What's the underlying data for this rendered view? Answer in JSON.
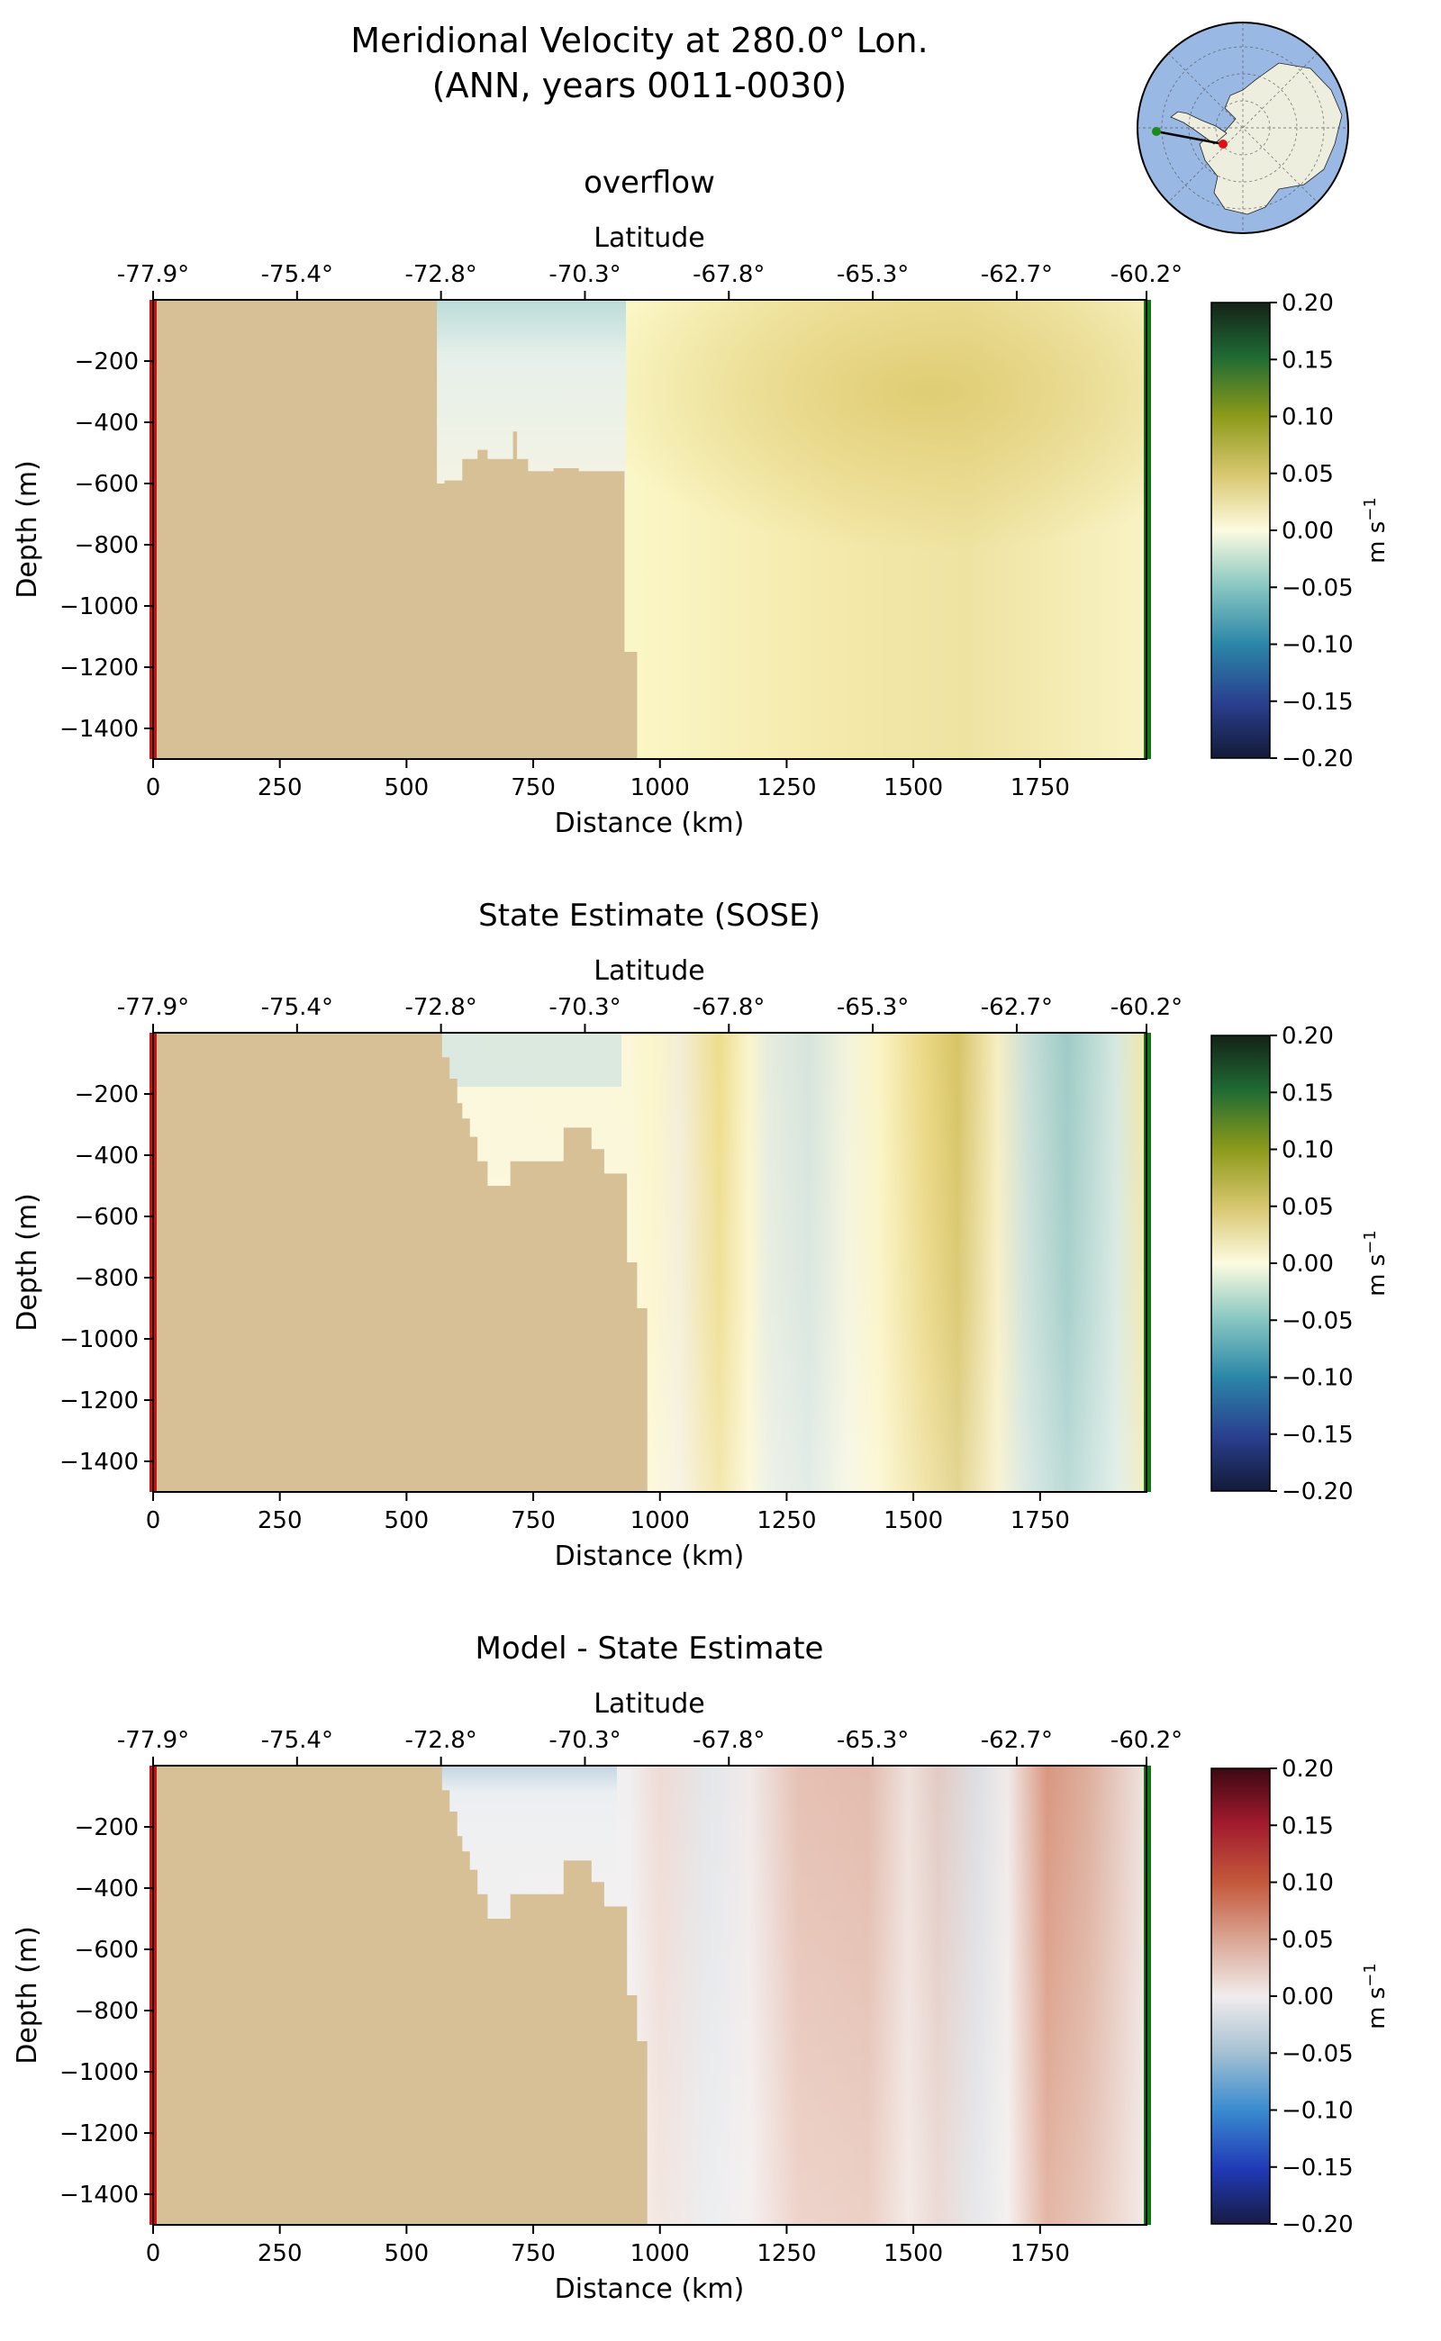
{
  "figure": {
    "title_line1": "Meridional Velocity at 280.0° Lon.",
    "title_line2": "(ANN, years 0011-0030)"
  },
  "inset_map": {
    "region": "Antarctica south polar stereographic view",
    "ocean_color": "#9ab8e4",
    "land_color": "#eeeedf",
    "transect_start_color": "#1a8a1a",
    "transect_end_color": "#e01010"
  },
  "colors": {
    "bathymetry": "#d7bf96",
    "transect_start_marker": "#cc1111",
    "transect_end_marker": "#117711"
  },
  "chart_data": [
    {
      "type": "heatmap",
      "title": "overflow",
      "xlabel": "Distance (km)",
      "ylabel": "Depth (m)",
      "top_axis_label": "Latitude",
      "xlim": [
        0,
        1960
      ],
      "ylim": [
        -1500,
        0
      ],
      "x_ticks": [
        0,
        250,
        500,
        750,
        1000,
        1250,
        1500,
        1750
      ],
      "y_ticks": [
        -200,
        -400,
        -600,
        -800,
        -1000,
        -1200,
        -1400
      ],
      "lat_ticks": [
        "-77.9°",
        "-75.4°",
        "-72.8°",
        "-70.3°",
        "-67.8°",
        "-65.3°",
        "-62.7°",
        "-60.2°"
      ],
      "lat_tick_positions_km": [
        0,
        284,
        568,
        852,
        1136,
        1420,
        1704,
        1960
      ],
      "colorbar": {
        "cmap": "delta",
        "vmin": -0.2,
        "vmax": 0.2,
        "label": "m s⁻¹",
        "ticks": [
          0.2,
          0.15,
          0.1,
          0.05,
          0.0,
          -0.05,
          -0.1,
          -0.15,
          -0.2
        ]
      },
      "bathymetry_outline": [
        [
          0,
          0
        ],
        [
          560,
          0
        ],
        [
          560,
          -600
        ],
        [
          575,
          -600
        ],
        [
          575,
          -590
        ],
        [
          610,
          -590
        ],
        [
          610,
          -520
        ],
        [
          640,
          -520
        ],
        [
          640,
          -490
        ],
        [
          660,
          -490
        ],
        [
          660,
          -520
        ],
        [
          710,
          -520
        ],
        [
          710,
          -430
        ],
        [
          718,
          -430
        ],
        [
          718,
          -520
        ],
        [
          740,
          -520
        ],
        [
          740,
          -560
        ],
        [
          790,
          -560
        ],
        [
          790,
          -550
        ],
        [
          840,
          -550
        ],
        [
          840,
          -560
        ],
        [
          930,
          -560
        ],
        [
          930,
          -1150
        ],
        [
          955,
          -1150
        ],
        [
          955,
          -1500
        ],
        [
          0,
          -1500
        ]
      ],
      "velocity_field_summary": [
        {
          "x_range_km": [
            560,
            930
          ],
          "depth_range_m": [
            0,
            -300
          ],
          "value": -0.02
        },
        {
          "x_range_km": [
            930,
            1960
          ],
          "depth_range_m": [
            0,
            -1500
          ],
          "value": 0.02
        },
        {
          "x_range_km": [
            1450,
            1800
          ],
          "depth_range_m": [
            -100,
            -700
          ],
          "value": 0.04
        }
      ]
    },
    {
      "type": "heatmap",
      "title": "State Estimate (SOSE)",
      "xlabel": "Distance (km)",
      "ylabel": "Depth (m)",
      "top_axis_label": "Latitude",
      "xlim": [
        0,
        1960
      ],
      "ylim": [
        -1500,
        0
      ],
      "x_ticks": [
        0,
        250,
        500,
        750,
        1000,
        1250,
        1500,
        1750
      ],
      "y_ticks": [
        -200,
        -400,
        -600,
        -800,
        -1000,
        -1200,
        -1400
      ],
      "lat_ticks": [
        "-77.9°",
        "-75.4°",
        "-72.8°",
        "-70.3°",
        "-67.8°",
        "-65.3°",
        "-62.7°",
        "-60.2°"
      ],
      "lat_tick_positions_km": [
        0,
        284,
        568,
        852,
        1136,
        1420,
        1704,
        1960
      ],
      "colorbar": {
        "cmap": "delta",
        "vmin": -0.2,
        "vmax": 0.2,
        "label": "m s⁻¹",
        "ticks": [
          0.2,
          0.15,
          0.1,
          0.05,
          0.0,
          -0.05,
          -0.1,
          -0.15,
          -0.2
        ]
      },
      "bathymetry_outline": [
        [
          0,
          0
        ],
        [
          570,
          0
        ],
        [
          570,
          -80
        ],
        [
          585,
          -80
        ],
        [
          585,
          -150
        ],
        [
          600,
          -150
        ],
        [
          600,
          -230
        ],
        [
          610,
          -230
        ],
        [
          610,
          -280
        ],
        [
          625,
          -280
        ],
        [
          625,
          -340
        ],
        [
          640,
          -340
        ],
        [
          640,
          -420
        ],
        [
          660,
          -420
        ],
        [
          660,
          -500
        ],
        [
          705,
          -500
        ],
        [
          705,
          -420
        ],
        [
          810,
          -420
        ],
        [
          810,
          -310
        ],
        [
          865,
          -310
        ],
        [
          865,
          -380
        ],
        [
          890,
          -380
        ],
        [
          890,
          -460
        ],
        [
          935,
          -460
        ],
        [
          935,
          -750
        ],
        [
          955,
          -750
        ],
        [
          955,
          -900
        ],
        [
          975,
          -900
        ],
        [
          975,
          -1500
        ],
        [
          0,
          -1500
        ]
      ],
      "velocity_field_summary": [
        {
          "x_range_km": [
            570,
            900
          ],
          "depth_range_m": [
            0,
            -300
          ],
          "value": -0.01
        },
        {
          "x_range_km": [
            975,
            1060
          ],
          "depth_range_m": [
            0,
            -1500
          ],
          "value": 0.01
        },
        {
          "x_range_km": [
            1090,
            1180
          ],
          "depth_range_m": [
            0,
            -1500
          ],
          "value": 0.04
        },
        {
          "x_range_km": [
            1180,
            1390
          ],
          "depth_range_m": [
            0,
            -1500
          ],
          "value": -0.02
        },
        {
          "x_range_km": [
            1390,
            1500
          ],
          "depth_range_m": [
            0,
            -1500
          ],
          "value": 0.01
        },
        {
          "x_range_km": [
            1500,
            1680
          ],
          "depth_range_m": [
            0,
            -1500
          ],
          "value": 0.06
        },
        {
          "x_range_km": [
            1680,
            1950
          ],
          "depth_range_m": [
            0,
            -1500
          ],
          "value": -0.05
        }
      ]
    },
    {
      "type": "heatmap",
      "title": "Model - State Estimate",
      "xlabel": "Distance (km)",
      "ylabel": "Depth (m)",
      "top_axis_label": "Latitude",
      "xlim": [
        0,
        1960
      ],
      "ylim": [
        -1500,
        0
      ],
      "x_ticks": [
        0,
        250,
        500,
        750,
        1000,
        1250,
        1500,
        1750
      ],
      "y_ticks": [
        -200,
        -400,
        -600,
        -800,
        -1000,
        -1200,
        -1400
      ],
      "lat_ticks": [
        "-77.9°",
        "-75.4°",
        "-72.8°",
        "-70.3°",
        "-67.8°",
        "-65.3°",
        "-62.7°",
        "-60.2°"
      ],
      "lat_tick_positions_km": [
        0,
        284,
        568,
        852,
        1136,
        1420,
        1704,
        1960
      ],
      "colorbar": {
        "cmap": "balance",
        "vmin": -0.2,
        "vmax": 0.2,
        "label": "m s⁻¹",
        "ticks": [
          0.2,
          0.15,
          0.1,
          0.05,
          0.0,
          -0.05,
          -0.1,
          -0.15,
          -0.2
        ]
      },
      "bathymetry_outline": [
        [
          0,
          0
        ],
        [
          570,
          0
        ],
        [
          570,
          -80
        ],
        [
          585,
          -80
        ],
        [
          585,
          -150
        ],
        [
          600,
          -150
        ],
        [
          600,
          -230
        ],
        [
          610,
          -230
        ],
        [
          610,
          -280
        ],
        [
          625,
          -280
        ],
        [
          625,
          -340
        ],
        [
          640,
          -340
        ],
        [
          640,
          -420
        ],
        [
          660,
          -420
        ],
        [
          660,
          -500
        ],
        [
          705,
          -500
        ],
        [
          705,
          -420
        ],
        [
          810,
          -420
        ],
        [
          810,
          -310
        ],
        [
          865,
          -310
        ],
        [
          865,
          -380
        ],
        [
          890,
          -380
        ],
        [
          890,
          -460
        ],
        [
          935,
          -460
        ],
        [
          935,
          -750
        ],
        [
          955,
          -750
        ],
        [
          955,
          -900
        ],
        [
          975,
          -900
        ],
        [
          975,
          -1500
        ],
        [
          0,
          -1500
        ]
      ],
      "velocity_field_summary": [
        {
          "x_range_km": [
            975,
            1080
          ],
          "depth_range_m": [
            0,
            -1500
          ],
          "value": 0.01
        },
        {
          "x_range_km": [
            1080,
            1160
          ],
          "depth_range_m": [
            0,
            -1500
          ],
          "value": -0.01
        },
        {
          "x_range_km": [
            1220,
            1420
          ],
          "depth_range_m": [
            0,
            -1500
          ],
          "value": 0.05
        },
        {
          "x_range_km": [
            1440,
            1560
          ],
          "depth_range_m": [
            0,
            -1500
          ],
          "value": 0.02
        },
        {
          "x_range_km": [
            1580,
            1650
          ],
          "depth_range_m": [
            0,
            -1500
          ],
          "value": -0.02
        },
        {
          "x_range_km": [
            1680,
            1850
          ],
          "depth_range_m": [
            0,
            -1500
          ],
          "value": 0.1
        }
      ]
    }
  ]
}
